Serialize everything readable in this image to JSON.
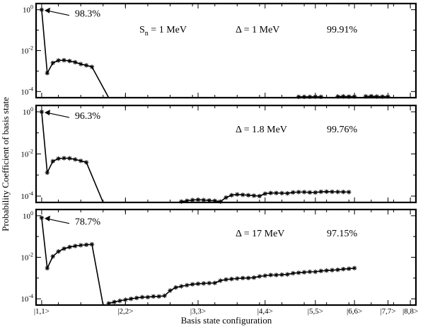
{
  "chart_data": {
    "type": "line",
    "xlabel": "Basis state configuration",
    "ylabel": "Probability Coefficient of basis state",
    "yscale": "log",
    "ylim": [
      5e-05,
      2
    ],
    "y_ticks": [
      {
        "value": 1,
        "label": "10^0"
      },
      {
        "value": 0.01,
        "label": "10^-2"
      },
      {
        "value": 0.0001,
        "label": "10^-4"
      }
    ],
    "x_tick_labels": [
      {
        "index": 1,
        "label": "|1,1>"
      },
      {
        "index": 16,
        "label": "|2,2>"
      },
      {
        "index": 29,
        "label": "|3,3>"
      },
      {
        "index": 41,
        "label": "|4,4>"
      },
      {
        "index": 50,
        "label": "|5,5>"
      },
      {
        "index": 57,
        "label": "|6,6>"
      },
      {
        "index": 63,
        "label": "|7,7>"
      },
      {
        "index": 67,
        "label": "|8,8>"
      }
    ],
    "xlim": [
      0,
      68
    ],
    "panels": [
      {
        "sn_label": "S",
        "sn_sub": "n",
        "sn_value": " = 1 MeV",
        "delta_label": "Δ = 1 MeV",
        "total": "99.91%",
        "first_coeff": "98.3%",
        "points": [
          [
            1,
            1.0
          ],
          [
            2,
            0.0008
          ],
          [
            3,
            0.0025
          ],
          [
            4,
            0.0033
          ],
          [
            5,
            0.0034
          ],
          [
            6,
            0.0031
          ],
          [
            7,
            0.0027
          ],
          [
            8,
            0.0022
          ],
          [
            9,
            0.0019
          ],
          [
            10,
            0.0016
          ]
        ],
        "drop_to": [
          13,
          5e-05
        ],
        "tail_points": [
          [
            47,
            5.5e-05
          ],
          [
            48,
            5.5e-05
          ],
          [
            49,
            5.5e-05
          ],
          [
            50,
            5.6e-05
          ],
          [
            51,
            5.5e-05
          ],
          [
            54,
            5.7e-05
          ],
          [
            55,
            5.8e-05
          ],
          [
            56,
            5.6e-05
          ],
          [
            57,
            5.7e-05
          ],
          [
            59,
            5.8e-05
          ],
          [
            60,
            5.9e-05
          ],
          [
            61,
            5.7e-05
          ],
          [
            62,
            5.6e-05
          ],
          [
            63,
            5.7e-05
          ]
        ]
      },
      {
        "delta_label": "Δ = 1.8 MeV",
        "total": "99.76%",
        "first_coeff": "96.3%",
        "points": [
          [
            1,
            1.0
          ],
          [
            2,
            0.0013
          ],
          [
            3,
            0.0045
          ],
          [
            4,
            0.006
          ],
          [
            5,
            0.0063
          ],
          [
            6,
            0.0062
          ],
          [
            7,
            0.0055
          ],
          [
            8,
            0.0047
          ],
          [
            9,
            0.004
          ]
        ],
        "drop_to": [
          12,
          5e-05
        ],
        "tail_points": [
          [
            26,
            5.5e-05
          ],
          [
            27,
            6e-05
          ],
          [
            28,
            6.5e-05
          ],
          [
            29,
            6.7e-05
          ],
          [
            30,
            6.5e-05
          ],
          [
            31,
            6.2e-05
          ],
          [
            32,
            6e-05
          ],
          [
            33,
            5.5e-05
          ],
          [
            34,
            8.5e-05
          ],
          [
            35,
            0.00011
          ],
          [
            36,
            0.00012
          ],
          [
            37,
            0.000115
          ],
          [
            38,
            0.00011
          ],
          [
            39,
            0.000105
          ],
          [
            40,
            0.0001
          ],
          [
            41,
            0.00013
          ],
          [
            42,
            0.00014
          ],
          [
            43,
            0.00014
          ],
          [
            44,
            0.000138
          ],
          [
            45,
            0.000135
          ],
          [
            46,
            0.00015
          ],
          [
            47,
            0.000155
          ],
          [
            48,
            0.000155
          ],
          [
            49,
            0.00015
          ],
          [
            50,
            0.000148
          ],
          [
            51,
            0.00016
          ],
          [
            52,
            0.000162
          ],
          [
            53,
            0.00016
          ],
          [
            54,
            0.000158
          ],
          [
            55,
            0.000157
          ],
          [
            56,
            0.000155
          ]
        ]
      },
      {
        "delta_label": "Δ = 17 MeV",
        "total": "97.15%",
        "first_coeff": "78.7%",
        "points": [
          [
            1,
            0.8
          ],
          [
            2,
            0.003
          ],
          [
            3,
            0.011
          ],
          [
            4,
            0.019
          ],
          [
            5,
            0.026
          ],
          [
            6,
            0.031
          ],
          [
            7,
            0.035
          ],
          [
            8,
            0.038
          ],
          [
            9,
            0.04
          ],
          [
            10,
            0.042
          ]
        ],
        "drop_to": [
          12,
          5e-05
        ],
        "tail_points": [
          [
            13,
            6e-05
          ],
          [
            14,
            7e-05
          ],
          [
            15,
            8e-05
          ],
          [
            16,
            9e-05
          ],
          [
            17,
            0.0001
          ],
          [
            18,
            0.00011
          ],
          [
            19,
            0.00012
          ],
          [
            20,
            0.00012
          ],
          [
            21,
            0.00013
          ],
          [
            22,
            0.00013
          ],
          [
            23,
            0.00014
          ],
          [
            24,
            0.00025
          ],
          [
            25,
            0.00035
          ],
          [
            26,
            0.0004
          ],
          [
            27,
            0.00045
          ],
          [
            28,
            0.0005
          ],
          [
            29,
            0.00053
          ],
          [
            30,
            0.00055
          ],
          [
            31,
            0.00057
          ],
          [
            32,
            0.00058
          ],
          [
            33,
            0.00075
          ],
          [
            34,
            0.00085
          ],
          [
            35,
            0.0009
          ],
          [
            36,
            0.00095
          ],
          [
            37,
            0.001
          ],
          [
            38,
            0.001
          ],
          [
            39,
            0.00105
          ],
          [
            40,
            0.0012
          ],
          [
            41,
            0.0013
          ],
          [
            42,
            0.0014
          ],
          [
            43,
            0.0014
          ],
          [
            44,
            0.00145
          ],
          [
            45,
            0.0015
          ],
          [
            46,
            0.0017
          ],
          [
            47,
            0.0018
          ],
          [
            48,
            0.0019
          ],
          [
            49,
            0.002
          ],
          [
            50,
            0.002
          ],
          [
            51,
            0.0022
          ],
          [
            52,
            0.0023
          ],
          [
            53,
            0.0024
          ],
          [
            54,
            0.0025
          ],
          [
            55,
            0.0027
          ],
          [
            56,
            0.0028
          ],
          [
            57,
            0.003
          ]
        ]
      }
    ]
  }
}
